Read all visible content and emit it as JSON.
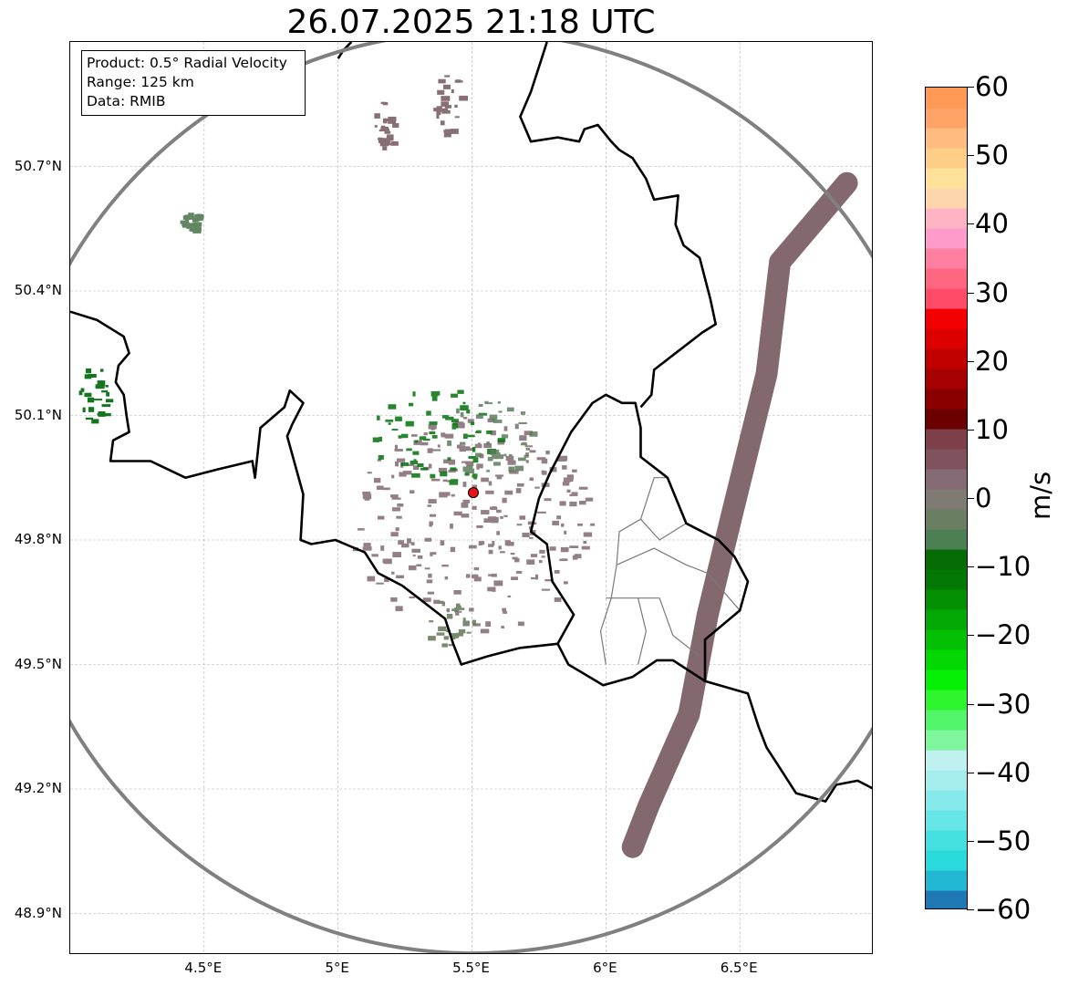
{
  "title": "26.07.2025 21:18 UTC",
  "info_box": {
    "product": "Product: 0.5° Radial Velocity",
    "range": "Range: 125 km",
    "data": "Data: RMIB"
  },
  "map": {
    "lon_range": [
      4.0,
      7.0
    ],
    "lat_range": [
      48.8,
      51.0
    ],
    "radar_site": {
      "lon": 5.505,
      "lat": 49.914
    },
    "radar_color": "#e8141a",
    "range_ring_color": "#808080",
    "lat_ticks": [
      {
        "value": 48.9,
        "label": "48.9°N"
      },
      {
        "value": 49.2,
        "label": "49.2°N"
      },
      {
        "value": 49.5,
        "label": "49.5°N"
      },
      {
        "value": 49.8,
        "label": "49.8°N"
      },
      {
        "value": 50.1,
        "label": "50.1°N"
      },
      {
        "value": 50.4,
        "label": "50.4°N"
      },
      {
        "value": 50.7,
        "label": "50.7°N"
      }
    ],
    "lon_ticks": [
      {
        "value": 4.5,
        "label": "4.5°E"
      },
      {
        "value": 5.0,
        "label": "5°E"
      },
      {
        "value": 5.5,
        "label": "5.5°E"
      },
      {
        "value": 6.0,
        "label": "6°E"
      },
      {
        "value": 6.5,
        "label": "6.5°E"
      }
    ],
    "borders": [
      [
        [
          4.0,
          50.35
        ],
        [
          4.1,
          50.33
        ],
        [
          4.2,
          50.29
        ],
        [
          4.22,
          50.25
        ],
        [
          4.18,
          50.22
        ],
        [
          4.17,
          50.18
        ],
        [
          4.2,
          50.15
        ],
        [
          4.21,
          50.1
        ],
        [
          4.22,
          50.06
        ],
        [
          4.16,
          50.04
        ],
        [
          4.15,
          49.99
        ],
        [
          4.3,
          49.99
        ],
        [
          4.43,
          49.95
        ],
        [
          4.55,
          49.97
        ],
        [
          4.68,
          49.99
        ],
        [
          4.69,
          49.95
        ],
        [
          4.71,
          50.07
        ],
        [
          4.8,
          50.12
        ],
        [
          4.82,
          50.16
        ],
        [
          4.87,
          50.13
        ],
        [
          4.83,
          50.08
        ],
        [
          4.81,
          50.05
        ],
        [
          4.84,
          49.98
        ],
        [
          4.87,
          49.91
        ],
        [
          4.86,
          49.8
        ],
        [
          4.9,
          49.79
        ],
        [
          4.99,
          49.8
        ],
        [
          5.1,
          49.77
        ],
        [
          5.15,
          49.72
        ],
        [
          5.24,
          49.69
        ],
        [
          5.3,
          49.66
        ],
        [
          5.4,
          49.61
        ],
        [
          5.43,
          49.55
        ],
        [
          5.46,
          49.5
        ],
        [
          5.56,
          49.52
        ],
        [
          5.68,
          49.54
        ],
        [
          5.82,
          49.55
        ],
        [
          5.86,
          49.5
        ],
        [
          5.99,
          49.45
        ],
        [
          6.1,
          49.47
        ],
        [
          6.19,
          49.51
        ],
        [
          6.25,
          49.51
        ],
        [
          6.37,
          49.46
        ],
        [
          6.53,
          49.43
        ],
        [
          6.57,
          49.35
        ],
        [
          6.6,
          49.3
        ],
        [
          6.64,
          49.26
        ],
        [
          6.71,
          49.19
        ],
        [
          6.82,
          49.17
        ],
        [
          6.86,
          49.21
        ],
        [
          6.94,
          49.22
        ],
        [
          7.0,
          49.2
        ]
      ],
      [
        [
          5.82,
          49.55
        ],
        [
          5.88,
          49.62
        ],
        [
          5.8,
          49.7
        ],
        [
          5.78,
          49.79
        ],
        [
          5.72,
          49.82
        ],
        [
          5.75,
          49.9
        ],
        [
          5.79,
          49.96
        ],
        [
          5.87,
          50.06
        ],
        [
          5.95,
          50.13
        ],
        [
          6.0,
          50.15
        ],
        [
          6.06,
          50.13
        ],
        [
          6.11,
          50.13
        ],
        [
          6.13,
          50.07
        ],
        [
          6.13,
          50.0
        ],
        [
          6.23,
          49.95
        ],
        [
          6.3,
          49.84
        ],
        [
          6.42,
          49.8
        ],
        [
          6.48,
          49.76
        ],
        [
          6.53,
          49.7
        ],
        [
          6.5,
          49.63
        ],
        [
          6.37,
          49.56
        ],
        [
          6.37,
          49.46
        ]
      ],
      [
        [
          6.13,
          50.12
        ],
        [
          6.17,
          50.15
        ],
        [
          6.18,
          50.21
        ],
        [
          6.26,
          50.25
        ],
        [
          6.36,
          50.3
        ],
        [
          6.41,
          50.32
        ],
        [
          6.39,
          50.38
        ],
        [
          6.35,
          50.48
        ],
        [
          6.29,
          50.51
        ],
        [
          6.26,
          50.56
        ],
        [
          6.27,
          50.63
        ],
        [
          6.18,
          50.62
        ],
        [
          6.15,
          50.67
        ],
        [
          6.1,
          50.72
        ],
        [
          6.05,
          50.74
        ],
        [
          6.02,
          50.76
        ],
        [
          5.97,
          50.8
        ],
        [
          5.92,
          50.79
        ],
        [
          5.9,
          50.76
        ],
        [
          5.82,
          50.77
        ],
        [
          5.72,
          50.76
        ],
        [
          5.68,
          50.82
        ],
        [
          5.72,
          50.88
        ],
        [
          5.76,
          50.96
        ],
        [
          5.78,
          51.0
        ]
      ],
      [
        [
          5.05,
          51.0
        ],
        [
          5.02,
          50.98
        ],
        [
          5.0,
          50.96
        ]
      ]
    ],
    "provinces": [
      [
        [
          6.0,
          49.5
        ],
        [
          5.98,
          49.58
        ],
        [
          6.02,
          49.66
        ],
        [
          6.04,
          49.74
        ],
        [
          6.18,
          49.78
        ],
        [
          6.3,
          49.74
        ],
        [
          6.38,
          49.72
        ],
        [
          6.5,
          49.63
        ]
      ],
      [
        [
          6.04,
          49.74
        ],
        [
          6.05,
          49.82
        ],
        [
          6.13,
          49.85
        ],
        [
          6.2,
          49.8
        ],
        [
          6.3,
          49.84
        ]
      ],
      [
        [
          6.13,
          49.85
        ],
        [
          6.18,
          49.95
        ],
        [
          6.23,
          49.95
        ]
      ],
      [
        [
          6.0,
          49.66
        ],
        [
          6.2,
          49.66
        ],
        [
          6.25,
          49.57
        ],
        [
          6.35,
          49.52
        ]
      ],
      [
        [
          6.12,
          49.66
        ],
        [
          6.15,
          49.58
        ],
        [
          6.12,
          49.5
        ]
      ]
    ],
    "echo_regions": [
      {
        "type": "blob",
        "lon": 5.5,
        "lat": 49.84,
        "rx": 0.46,
        "ry": 0.26,
        "color": "#806a72",
        "opacity": 0.85
      },
      {
        "type": "blob",
        "lon": 5.36,
        "lat": 50.05,
        "rx": 0.24,
        "ry": 0.12,
        "color": "#03720d",
        "opacity": 0.85
      },
      {
        "type": "blob",
        "lon": 5.55,
        "lat": 50.05,
        "rx": 0.18,
        "ry": 0.1,
        "color": "#5e7c5e",
        "opacity": 0.85
      },
      {
        "type": "blob",
        "lon": 5.41,
        "lat": 49.6,
        "rx": 0.1,
        "ry": 0.06,
        "color": "#6a7f62",
        "opacity": 0.9
      },
      {
        "type": "line",
        "points": [
          [
            6.9,
            50.66
          ],
          [
            6.65,
            50.47
          ],
          [
            6.6,
            50.2
          ],
          [
            6.47,
            49.86
          ],
          [
            6.38,
            49.62
          ],
          [
            6.31,
            49.38
          ],
          [
            6.16,
            49.16
          ],
          [
            6.1,
            49.06
          ]
        ],
        "width": 24,
        "color": "#7c6068",
        "opacity": 0.95
      },
      {
        "type": "blob",
        "lon": 4.45,
        "lat": 50.57,
        "rx": 0.04,
        "ry": 0.02,
        "color": "#5a7f5a",
        "opacity": 0.95
      },
      {
        "type": "blob",
        "lon": 4.08,
        "lat": 50.15,
        "rx": 0.06,
        "ry": 0.08,
        "color": "#0a6e14",
        "opacity": 0.95
      },
      {
        "type": "blob",
        "lon": 5.41,
        "lat": 50.85,
        "rx": 0.06,
        "ry": 0.08,
        "color": "#7c6068",
        "opacity": 0.9
      },
      {
        "type": "blob",
        "lon": 5.17,
        "lat": 50.8,
        "rx": 0.04,
        "ry": 0.06,
        "color": "#7c6068",
        "opacity": 0.9
      }
    ]
  },
  "colorbar": {
    "unit": "m/s",
    "min": -60,
    "max": 60,
    "tick_values": [
      60,
      50,
      40,
      30,
      20,
      10,
      0,
      -10,
      -20,
      -30,
      -40,
      -50,
      -60
    ],
    "tick_labels": [
      "60",
      "50",
      "40",
      "30",
      "20",
      "10",
      "0",
      "−10",
      "−20",
      "−30",
      "−40",
      "−50",
      "−60"
    ],
    "color_stops": [
      "#1f78b4",
      "#22b8d4",
      "#2ad9dc",
      "#45e0e0",
      "#66e6e6",
      "#86eaea",
      "#a6eeee",
      "#bff1f1",
      "#7ff59d",
      "#53f56a",
      "#2ef52e",
      "#05f005",
      "#04d804",
      "#04c004",
      "#04a804",
      "#039003",
      "#037803",
      "#056b05",
      "#4c7f54",
      "#6a7f62",
      "#7e7a74",
      "#856a76",
      "#80525e",
      "#7d404a",
      "#6b0000",
      "#8a0000",
      "#a60000",
      "#c10000",
      "#dd0000",
      "#f50000",
      "#ff4a68",
      "#ff6680",
      "#ff7fa0",
      "#ff9bcb",
      "#ffb3c3",
      "#ffd5ae",
      "#ffe29a",
      "#ffce86",
      "#ffbc80",
      "#ffa466",
      "#ff9955"
    ]
  }
}
